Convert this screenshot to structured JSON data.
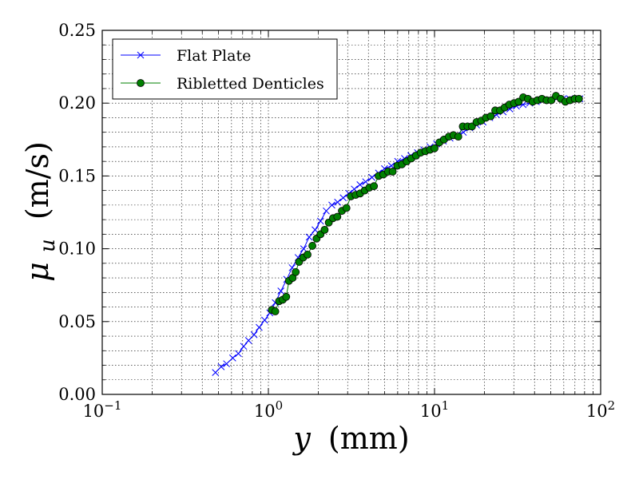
{
  "chart_data": {
    "type": "line",
    "x_scale": "log",
    "xlim": [
      0.1,
      100
    ],
    "ylim": [
      0.0,
      0.25
    ],
    "grid": true,
    "legend_position": "top-left",
    "xlabel": {
      "symbol": "y",
      "unit": "(mm)"
    },
    "ylabel": {
      "symbol": "μ",
      "subscript": "u",
      "unit": "(m/s)"
    },
    "x_ticks": [
      {
        "value": 0.1,
        "base": "10",
        "exp": "−1"
      },
      {
        "value": 1,
        "base": "10",
        "exp": "0"
      },
      {
        "value": 10,
        "base": "10",
        "exp": "1"
      },
      {
        "value": 100,
        "base": "10",
        "exp": "2"
      }
    ],
    "y_ticks": [
      {
        "value": 0.0,
        "label": "0.00"
      },
      {
        "value": 0.05,
        "label": "0.05"
      },
      {
        "value": 0.1,
        "label": "0.10"
      },
      {
        "value": 0.15,
        "label": "0.15"
      },
      {
        "value": 0.2,
        "label": "0.20"
      },
      {
        "value": 0.25,
        "label": "0.25"
      }
    ],
    "series": [
      {
        "name": "Flat Plate",
        "color": "#0000ff",
        "marker": "x",
        "x": [
          0.48,
          0.52,
          0.56,
          0.61,
          0.66,
          0.71,
          0.76,
          0.82,
          0.88,
          0.95,
          1.02,
          1.1,
          1.19,
          1.29,
          1.39,
          1.51,
          1.63,
          1.76,
          1.91,
          2.06,
          2.23,
          2.41,
          2.61,
          2.82,
          3.05,
          3.29,
          3.56,
          3.85,
          4.2,
          4.6,
          5.0,
          5.5,
          6.0,
          6.6,
          7.2,
          7.9,
          8.6,
          9.4,
          10.3,
          11.3,
          12.4,
          13.6,
          14.9,
          16.3,
          17.9,
          19.6,
          21.5,
          23.6,
          25.9,
          28.4,
          31.1,
          34.1,
          37.4,
          41.0,
          45.0,
          49.3,
          54.1,
          59.3,
          65.0,
          71.3,
          75.0
        ],
        "y": [
          0.015,
          0.019,
          0.021,
          0.025,
          0.028,
          0.033,
          0.037,
          0.041,
          0.046,
          0.051,
          0.056,
          0.063,
          0.071,
          0.079,
          0.087,
          0.094,
          0.1,
          0.108,
          0.113,
          0.119,
          0.126,
          0.13,
          0.132,
          0.135,
          0.138,
          0.141,
          0.144,
          0.146,
          0.149,
          0.152,
          0.155,
          0.157,
          0.16,
          0.162,
          0.164,
          0.166,
          0.168,
          0.17,
          0.172,
          0.174,
          0.176,
          0.178,
          0.18,
          0.183,
          0.185,
          0.187,
          0.19,
          0.192,
          0.194,
          0.196,
          0.198,
          0.199,
          0.2,
          0.201,
          0.202,
          0.202,
          0.203,
          0.203,
          0.203,
          0.203,
          0.203
        ]
      },
      {
        "name": "Ribletted Denticles",
        "color": "#008000",
        "marker": "o",
        "x": [
          1.05,
          1.1,
          1.16,
          1.22,
          1.28,
          1.33,
          1.4,
          1.46,
          1.53,
          1.62,
          1.72,
          1.84,
          1.95,
          2.06,
          2.18,
          2.31,
          2.45,
          2.6,
          2.77,
          2.95,
          3.14,
          3.35,
          3.57,
          3.8,
          4.05,
          4.32,
          4.61,
          4.92,
          5.25,
          5.6,
          5.97,
          6.37,
          6.8,
          7.25,
          7.74,
          8.26,
          8.81,
          9.4,
          10.0,
          10.7,
          11.4,
          12.2,
          13.0,
          13.9,
          14.8,
          15.8,
          16.8,
          17.9,
          19.1,
          20.4,
          21.8,
          23.2,
          24.8,
          26.4,
          28.2,
          30.1,
          32.1,
          34.2,
          36.5,
          39.0,
          41.6,
          44.3,
          47.3,
          50.5,
          53.8,
          57.5,
          61.3,
          65.4,
          69.8,
          74.0
        ],
        "y": [
          0.058,
          0.057,
          0.064,
          0.065,
          0.067,
          0.078,
          0.08,
          0.084,
          0.091,
          0.094,
          0.096,
          0.102,
          0.107,
          0.11,
          0.113,
          0.118,
          0.121,
          0.122,
          0.126,
          0.128,
          0.136,
          0.137,
          0.138,
          0.14,
          0.142,
          0.143,
          0.15,
          0.151,
          0.153,
          0.153,
          0.157,
          0.158,
          0.16,
          0.162,
          0.164,
          0.166,
          0.167,
          0.168,
          0.169,
          0.173,
          0.175,
          0.177,
          0.178,
          0.177,
          0.184,
          0.184,
          0.184,
          0.187,
          0.188,
          0.19,
          0.191,
          0.195,
          0.195,
          0.197,
          0.199,
          0.2,
          0.201,
          0.204,
          0.203,
          0.201,
          0.202,
          0.203,
          0.202,
          0.202,
          0.205,
          0.203,
          0.201,
          0.202,
          0.203,
          0.203
        ]
      }
    ]
  }
}
